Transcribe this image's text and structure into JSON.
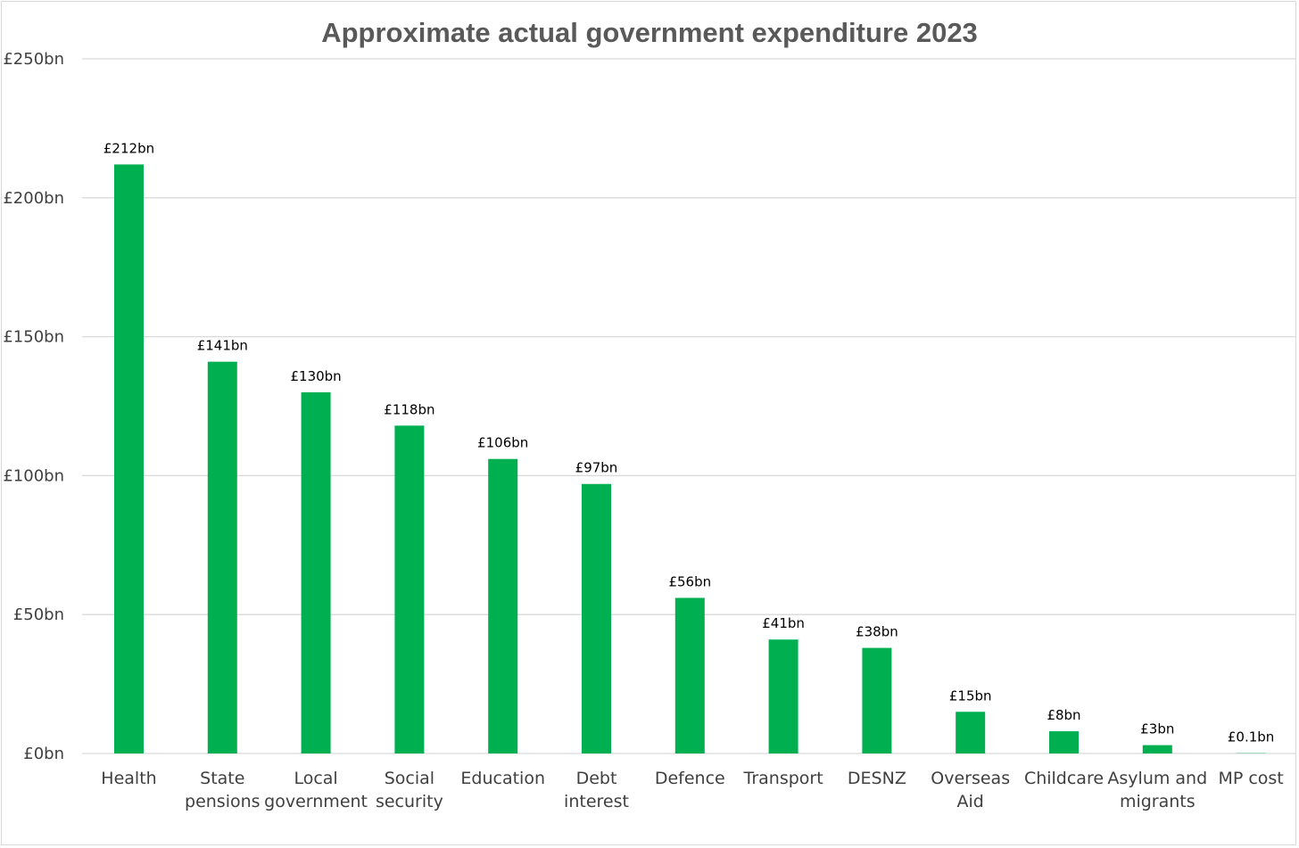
{
  "chart_data": {
    "type": "bar",
    "title": "Approximate actual government expenditure 2023",
    "xlabel": "",
    "ylabel": "",
    "categories": [
      [
        "Health"
      ],
      [
        "State",
        "pensions"
      ],
      [
        "Local",
        "government"
      ],
      [
        "Social",
        "security"
      ],
      [
        "Education"
      ],
      [
        "Debt",
        "interest"
      ],
      [
        "Defence"
      ],
      [
        "Transport"
      ],
      [
        "DESNZ"
      ],
      [
        "Overseas",
        "Aid"
      ],
      [
        "Childcare"
      ],
      [
        "Asylum and",
        "migrants"
      ],
      [
        "MP cost"
      ]
    ],
    "values": [
      212,
      141,
      130,
      118,
      106,
      97,
      56,
      41,
      38,
      15,
      8,
      3,
      0.1
    ],
    "data_labels": [
      "£212bn",
      "£141bn",
      "£130bn",
      "£118bn",
      "£106bn",
      "£97bn",
      "£56bn",
      "£41bn",
      "£38bn",
      "£15bn",
      "£8bn",
      "£3bn",
      "£0.1bn"
    ],
    "ylim": [
      0,
      250
    ],
    "yticks": [
      0,
      50,
      100,
      150,
      200,
      250
    ],
    "ytick_labels": [
      "£0bn",
      "£50bn",
      "£100bn",
      "£150bn",
      "£200bn",
      "£250bn"
    ],
    "grid": true,
    "legend": "none",
    "bar_color": "#00b050"
  }
}
